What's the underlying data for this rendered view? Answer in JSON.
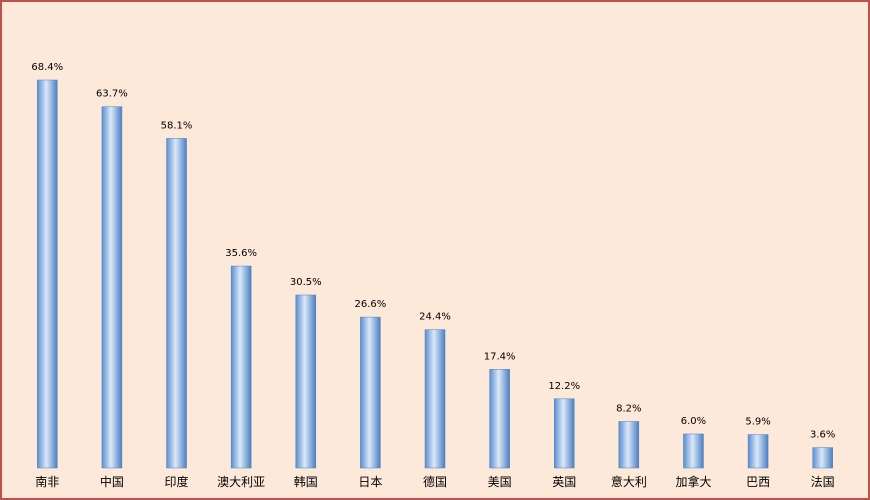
{
  "chart_data": {
    "type": "bar",
    "categories": [
      "南非",
      "中国",
      "印度",
      "澳大利亚",
      "韩国",
      "日本",
      "德国",
      "美国",
      "英国",
      "意大利",
      "加拿大",
      "巴西",
      "法国"
    ],
    "values": [
      68.4,
      63.7,
      58.1,
      35.6,
      30.5,
      26.6,
      24.4,
      17.4,
      12.2,
      8.2,
      6.0,
      5.9,
      3.6
    ],
    "value_labels": [
      "68.4%",
      "63.7%",
      "58.1%",
      "35.6%",
      "30.5%",
      "26.6%",
      "24.4%",
      "17.4%",
      "12.2%",
      "8.2%",
      "6.0%",
      "5.9%",
      "3.6%"
    ],
    "color": "#4f81bd"
  }
}
